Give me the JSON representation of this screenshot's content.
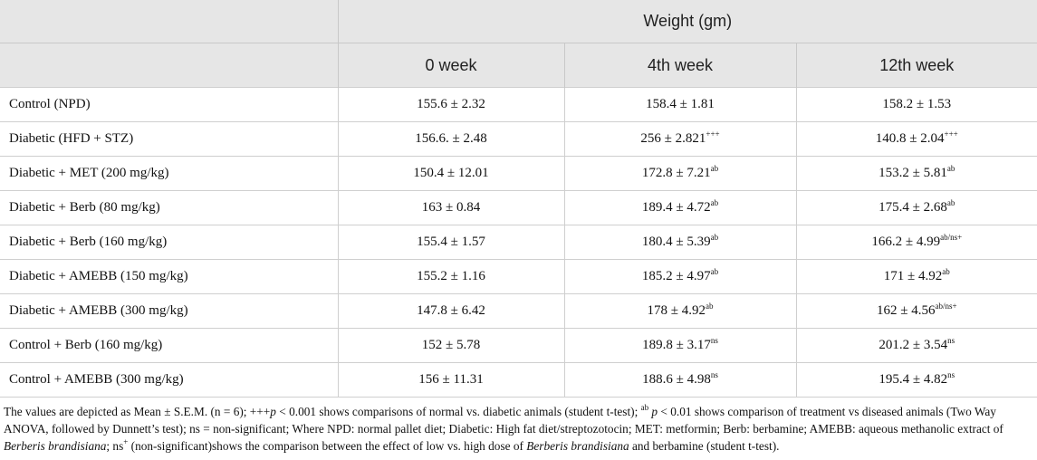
{
  "table": {
    "group_header": "Weight (gm)",
    "columns": [
      "0 week",
      "4th week",
      "12th week"
    ],
    "rows": [
      {
        "label": "Control (NPD)",
        "cells": [
          {
            "value": "155.6 ± 2.32",
            "sup": ""
          },
          {
            "value": "158.4 ± 1.81",
            "sup": ""
          },
          {
            "value": "158.2 ± 1.53",
            "sup": ""
          }
        ]
      },
      {
        "label": "Diabetic (HFD + STZ)",
        "cells": [
          {
            "value": "156.6. ± 2.48",
            "sup": ""
          },
          {
            "value": "256 ± 2.821",
            "sup": "+++"
          },
          {
            "value": "140.8 ± 2.04",
            "sup": "+++"
          }
        ]
      },
      {
        "label": "Diabetic + MET (200 mg/kg)",
        "cells": [
          {
            "value": "150.4 ± 12.01",
            "sup": ""
          },
          {
            "value": "172.8 ± 7.21",
            "sup": "ab"
          },
          {
            "value": "153.2 ± 5.81",
            "sup": "ab"
          }
        ]
      },
      {
        "label": "Diabetic + Berb (80 mg/kg)",
        "cells": [
          {
            "value": "163 ± 0.84",
            "sup": ""
          },
          {
            "value": "189.4 ± 4.72",
            "sup": "ab"
          },
          {
            "value": "175.4 ± 2.68",
            "sup": "ab"
          }
        ]
      },
      {
        "label": "Diabetic + Berb (160 mg/kg)",
        "cells": [
          {
            "value": "155.4 ± 1.57",
            "sup": ""
          },
          {
            "value": "180.4 ± 5.39",
            "sup": "ab"
          },
          {
            "value": "166.2 ± 4.99",
            "sup": "ab/ns+"
          }
        ]
      },
      {
        "label": "Diabetic + AMEBB (150 mg/kg)",
        "cells": [
          {
            "value": "155.2 ± 1.16",
            "sup": ""
          },
          {
            "value": "185.2 ± 4.97",
            "sup": "ab"
          },
          {
            "value": "171 ± 4.92",
            "sup": "ab"
          }
        ]
      },
      {
        "label": "Diabetic + AMEBB (300 mg/kg)",
        "cells": [
          {
            "value": "147.8 ± 6.42",
            "sup": ""
          },
          {
            "value": "178 ± 4.92",
            "sup": "ab"
          },
          {
            "value": "162 ± 4.56",
            "sup": "ab/ns+"
          }
        ]
      },
      {
        "label": "Control + Berb (160 mg/kg)",
        "cells": [
          {
            "value": "152 ± 5.78",
            "sup": ""
          },
          {
            "value": "189.8 ± 3.17",
            "sup": "ns"
          },
          {
            "value": "201.2 ± 3.54",
            "sup": "ns"
          }
        ]
      },
      {
        "label": "Control + AMEBB (300 mg/kg)",
        "cells": [
          {
            "value": "156 ± 11.31",
            "sup": ""
          },
          {
            "value": "188.6 ± 4.98",
            "sup": "ns"
          },
          {
            "value": "195.4 ± 4.82",
            "sup": "ns"
          }
        ]
      }
    ]
  },
  "footnote": {
    "part1": "The values are depicted as Mean ± S.E.M. (n = 6); +++",
    "p1": "p",
    "part2": " < 0.001 shows comparisons of normal vs. diabetic animals (student t-test); ",
    "sup_ab": "ab",
    "p2": " p",
    "part3": " < 0.01 shows comparison of treatment vs diseased animals (Two Way ANOVA, followed by Dunnett’s test); ns = non-significant; Where NPD: normal pallet diet; Diabetic: High fat diet/streptozotocin; MET: metformin; Berb: berbamine; AMEBB: aqueous methanolic extract of ",
    "species1": "Berberis brandisiana",
    "part4": "; ns",
    "sup_plus": "+",
    "part5": " (non-significant)shows the comparison between the effect of low vs. high dose of ",
    "species2": "Berberis brandisiana",
    "part6": " and berbamine (student t-test)."
  }
}
